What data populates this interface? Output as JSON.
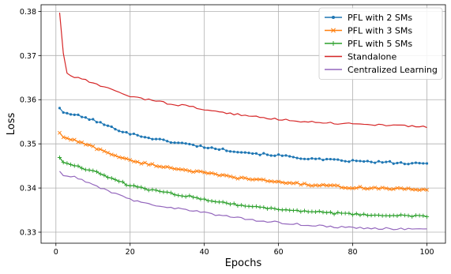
{
  "chart_data": {
    "type": "line",
    "title": "",
    "xlabel": "Epochs",
    "ylabel": "Loss",
    "xlim": [
      -4,
      105
    ],
    "ylim": [
      0.3275,
      0.3815
    ],
    "xticks": [
      0,
      20,
      40,
      60,
      80,
      100
    ],
    "yticks": [
      0.33,
      0.34,
      0.35,
      0.36,
      0.37,
      0.38
    ],
    "grid": true,
    "legend": "top-right",
    "series": [
      {
        "name": "PFL with 2 SMs",
        "color": "#1f77b4",
        "marker": "dot",
        "keypoints": [
          [
            1,
            0.3581
          ],
          [
            2,
            0.3571
          ],
          [
            5,
            0.3566
          ],
          [
            10,
            0.3554
          ],
          [
            15,
            0.3537
          ],
          [
            20,
            0.3523
          ],
          [
            25,
            0.3514
          ],
          [
            30,
            0.3506
          ],
          [
            35,
            0.35
          ],
          [
            40,
            0.3493
          ],
          [
            45,
            0.3487
          ],
          [
            50,
            0.3482
          ],
          [
            55,
            0.3477
          ],
          [
            60,
            0.3474
          ],
          [
            65,
            0.3469
          ],
          [
            70,
            0.3465
          ],
          [
            75,
            0.3463
          ],
          [
            80,
            0.3461
          ],
          [
            85,
            0.3459
          ],
          [
            90,
            0.3458
          ],
          [
            95,
            0.3455
          ],
          [
            100,
            0.3455
          ]
        ]
      },
      {
        "name": "PFL with 3 SMs",
        "color": "#ff7f0e",
        "marker": "x",
        "keypoints": [
          [
            1,
            0.3525
          ],
          [
            2,
            0.3515
          ],
          [
            5,
            0.3508
          ],
          [
            10,
            0.3493
          ],
          [
            15,
            0.3477
          ],
          [
            20,
            0.3462
          ],
          [
            25,
            0.3454
          ],
          [
            30,
            0.3447
          ],
          [
            35,
            0.3441
          ],
          [
            40,
            0.3434
          ],
          [
            45,
            0.3428
          ],
          [
            50,
            0.3422
          ],
          [
            55,
            0.3418
          ],
          [
            60,
            0.3414
          ],
          [
            65,
            0.341
          ],
          [
            70,
            0.3406
          ],
          [
            75,
            0.3404
          ],
          [
            80,
            0.3401
          ],
          [
            85,
            0.34
          ],
          [
            90,
            0.3399
          ],
          [
            95,
            0.3397
          ],
          [
            100,
            0.3396
          ]
        ]
      },
      {
        "name": "PFL with 5 SMs",
        "color": "#2ca02c",
        "marker": "plus",
        "keypoints": [
          [
            1,
            0.3469
          ],
          [
            2,
            0.3458
          ],
          [
            5,
            0.3452
          ],
          [
            10,
            0.3438
          ],
          [
            15,
            0.3422
          ],
          [
            20,
            0.3405
          ],
          [
            25,
            0.3397
          ],
          [
            30,
            0.3389
          ],
          [
            35,
            0.3382
          ],
          [
            40,
            0.3375
          ],
          [
            45,
            0.3367
          ],
          [
            50,
            0.3361
          ],
          [
            55,
            0.3356
          ],
          [
            60,
            0.3352
          ],
          [
            65,
            0.3349
          ],
          [
            70,
            0.3346
          ],
          [
            75,
            0.3343
          ],
          [
            80,
            0.334
          ],
          [
            85,
            0.3339
          ],
          [
            90,
            0.3338
          ],
          [
            95,
            0.3337
          ],
          [
            100,
            0.3336
          ]
        ]
      },
      {
        "name": "Standalone",
        "color": "#d62728",
        "marker": "none",
        "keypoints": [
          [
            1,
            0.3797
          ],
          [
            2,
            0.3705
          ],
          [
            3,
            0.366
          ],
          [
            5,
            0.365
          ],
          [
            8,
            0.3645
          ],
          [
            10,
            0.3637
          ],
          [
            15,
            0.3622
          ],
          [
            20,
            0.3608
          ],
          [
            25,
            0.36
          ],
          [
            30,
            0.3592
          ],
          [
            35,
            0.3586
          ],
          [
            40,
            0.3578
          ],
          [
            45,
            0.3571
          ],
          [
            50,
            0.3565
          ],
          [
            55,
            0.356
          ],
          [
            60,
            0.3556
          ],
          [
            65,
            0.3552
          ],
          [
            70,
            0.3549
          ],
          [
            75,
            0.3547
          ],
          [
            80,
            0.3545
          ],
          [
            85,
            0.3544
          ],
          [
            90,
            0.3542
          ],
          [
            95,
            0.354
          ],
          [
            100,
            0.3539
          ]
        ]
      },
      {
        "name": "Centralized Learning",
        "color": "#9467bd",
        "marker": "none",
        "keypoints": [
          [
            1,
            0.3438
          ],
          [
            2,
            0.3428
          ],
          [
            5,
            0.3425
          ],
          [
            10,
            0.3407
          ],
          [
            15,
            0.339
          ],
          [
            20,
            0.3374
          ],
          [
            25,
            0.3364
          ],
          [
            30,
            0.3357
          ],
          [
            35,
            0.3351
          ],
          [
            40,
            0.3344
          ],
          [
            45,
            0.3337
          ],
          [
            50,
            0.3331
          ],
          [
            55,
            0.3326
          ],
          [
            60,
            0.3322
          ],
          [
            65,
            0.3318
          ],
          [
            70,
            0.3315
          ],
          [
            75,
            0.3312
          ],
          [
            80,
            0.331
          ],
          [
            85,
            0.3309
          ],
          [
            90,
            0.3308
          ],
          [
            95,
            0.3307
          ],
          [
            100,
            0.3306
          ]
        ]
      }
    ]
  }
}
